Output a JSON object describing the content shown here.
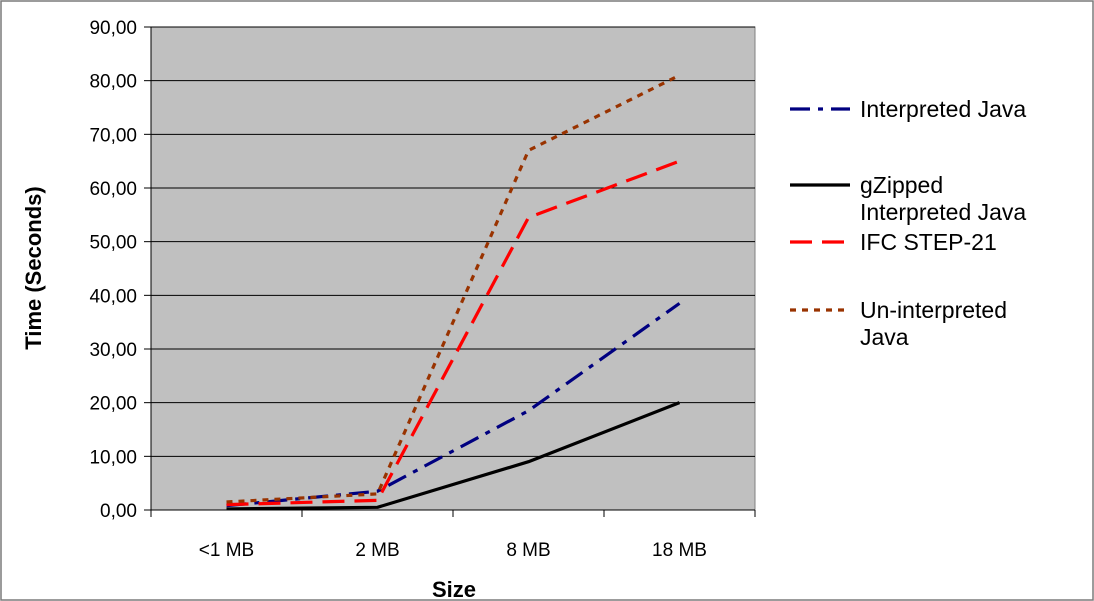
{
  "chart_data": {
    "type": "line",
    "categories": [
      "<1 MB",
      "2 MB",
      "8 MB",
      "18 MB"
    ],
    "xlabel": "Size",
    "ylabel": "Time (Seconds)",
    "ylim": [
      0,
      90
    ],
    "yticks": [
      "0,00",
      "10,00",
      "20,00",
      "30,00",
      "40,00",
      "50,00",
      "60,00",
      "70,00",
      "80,00",
      "90,00"
    ],
    "grid": true,
    "legend_position": "right",
    "series": [
      {
        "name": "Interpreted Java",
        "values": [
          0.8,
          3.5,
          18.5,
          38.5
        ],
        "color": "#000080",
        "dash": "long-dash-dot"
      },
      {
        "name": "gZipped Interpreted Java",
        "values": [
          0.2,
          0.5,
          9.0,
          20.0
        ],
        "color": "#000000",
        "dash": "solid"
      },
      {
        "name": "IFC STEP-21",
        "values": [
          1.0,
          1.8,
          54.5,
          65.0
        ],
        "color": "#ff0000",
        "dash": "dash"
      },
      {
        "name": "Un-interpreted Java",
        "values": [
          1.5,
          3.0,
          67.0,
          81.0
        ],
        "color": "#993300",
        "dash": "dot"
      }
    ]
  }
}
